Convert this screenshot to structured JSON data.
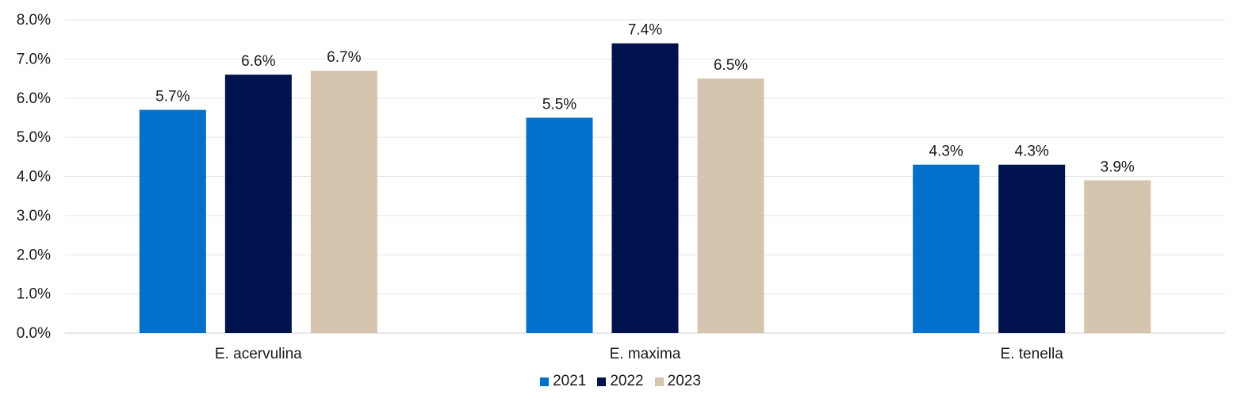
{
  "chart_data": {
    "type": "bar",
    "title": "",
    "xlabel": "",
    "ylabel": "",
    "categories": [
      "E. acervulina",
      "E. maxima",
      "E. tenella"
    ],
    "series": [
      {
        "name": "2021",
        "values": [
          5.7,
          5.5,
          4.3
        ],
        "labels": [
          "5.7%",
          "5.5%",
          "4.3%"
        ],
        "color": "#0070CC"
      },
      {
        "name": "2022",
        "values": [
          6.6,
          7.4,
          4.3
        ],
        "labels": [
          "6.6%",
          "7.4%",
          "4.3%"
        ],
        "color": "#00124D"
      },
      {
        "name": "2023",
        "values": [
          6.7,
          6.5,
          3.9
        ],
        "labels": [
          "6.7%",
          "6.5%",
          "3.9%"
        ],
        "color": "#D5C4AE"
      }
    ],
    "ylim": [
      0,
      8
    ],
    "yticks": [
      "0.0%",
      "1.0%",
      "2.0%",
      "3.0%",
      "4.0%",
      "5.0%",
      "6.0%",
      "7.0%",
      "8.0%"
    ],
    "grid": true,
    "legend_position": "bottom-center"
  }
}
